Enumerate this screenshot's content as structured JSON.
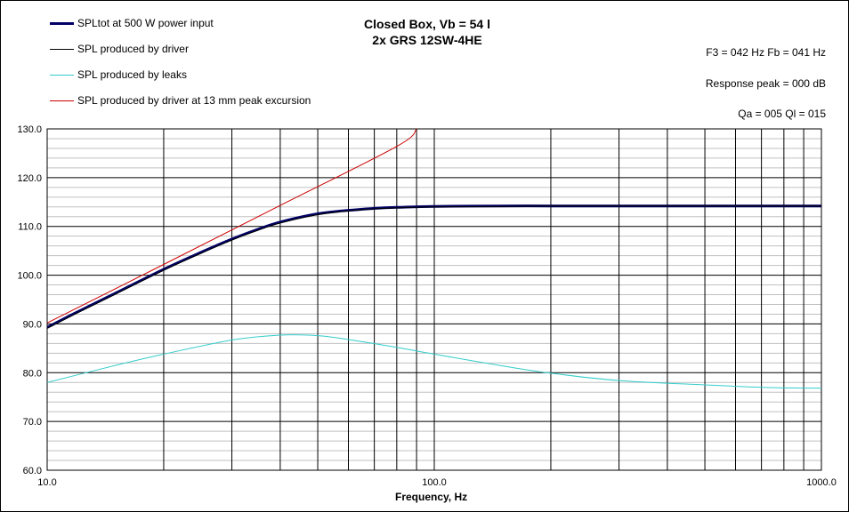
{
  "header": {
    "title_line1": "Closed Box, Vb = 54 l",
    "title_line2": "2x GRS 12SW-4HE"
  },
  "info": {
    "f3_fb": "F3 = 042 Hz  Fb = 041 Hz",
    "response_peak": "Response  peak = 000 dB",
    "qa_ql": "Qa = 005  Ql = 015"
  },
  "legend": [
    {
      "label": "SPLtot at 500 W power input",
      "color": "#000066",
      "width": 3
    },
    {
      "label": "SPL produced by driver",
      "color": "#000000",
      "width": 1
    },
    {
      "label": "SPL produced by leaks",
      "color": "#33CCCC",
      "width": 1
    },
    {
      "label": "SPL produced by driver at 13 mm peak excursion",
      "color": "#CC0000",
      "width": 1
    }
  ],
  "chart_data": {
    "type": "line",
    "xscale": "log",
    "xlabel": "Frequency, Hz",
    "ylabel": "",
    "xlim": [
      10,
      1000
    ],
    "ylim": [
      60,
      130
    ],
    "x_ticks": [
      "10.0",
      "100.0",
      "1000.0"
    ],
    "y_ticks": [
      "130.0",
      "120.0",
      "110.0",
      "100.0",
      "90.0",
      "80.0",
      "70.0",
      "60.0"
    ],
    "grid": true,
    "legend_position": "top-left",
    "series": [
      {
        "name": "SPLtot at 500 W power input",
        "color": "#000066",
        "x": [
          10,
          12,
          15,
          20,
          25,
          30,
          35,
          40,
          50,
          60,
          70,
          80,
          100,
          150,
          200,
          300,
          500,
          700,
          1000
        ],
        "y": [
          89.3,
          92.5,
          96.3,
          101.2,
          104.7,
          107.4,
          109.4,
          110.9,
          112.6,
          113.3,
          113.7,
          113.9,
          114.1,
          114.2,
          114.2,
          114.2,
          114.2,
          114.2,
          114.2
        ]
      },
      {
        "name": "SPL produced by driver",
        "color": "#000000",
        "x": [
          10,
          12,
          15,
          20,
          25,
          30,
          35,
          40,
          50,
          60,
          70,
          80,
          100,
          150,
          200,
          300,
          500,
          700,
          1000
        ],
        "y": [
          89.1,
          92.3,
          96.1,
          101.0,
          104.5,
          107.2,
          109.2,
          110.7,
          112.4,
          113.2,
          113.6,
          113.8,
          114.0,
          114.1,
          114.2,
          114.2,
          114.2,
          114.2,
          114.2
        ]
      },
      {
        "name": "SPL produced by leaks",
        "color": "#33CCCC",
        "x": [
          10,
          15,
          20,
          30,
          40,
          50,
          60,
          80,
          100,
          150,
          200,
          300,
          500,
          700,
          1000
        ],
        "y": [
          78.0,
          81.5,
          83.8,
          86.7,
          87.7,
          87.6,
          86.8,
          85.2,
          83.8,
          81.4,
          79.9,
          78.4,
          77.5,
          77.0,
          76.8
        ]
      },
      {
        "name": "SPL produced by driver at 13 mm peak excursion",
        "color": "#CC0000",
        "x": [
          10,
          20,
          40,
          80,
          90
        ],
        "y": [
          90.2,
          102.2,
          114.3,
          126.4,
          130.0
        ]
      }
    ]
  }
}
